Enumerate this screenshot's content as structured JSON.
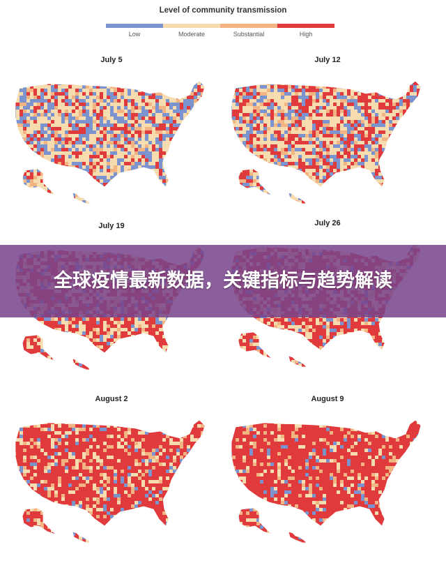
{
  "legend": {
    "title": "Level of community transmission",
    "levels": [
      {
        "label": "Low",
        "color": "#7b93cf"
      },
      {
        "label": "Moderate",
        "color": "#f6dcae"
      },
      {
        "label": "Substantial",
        "color": "#f2b483"
      },
      {
        "label": "High",
        "color": "#e03a3c"
      }
    ]
  },
  "maps": [
    {
      "date": "July 5",
      "mix": [
        0.28,
        0.4,
        0.1,
        0.22
      ]
    },
    {
      "date": "July 12",
      "mix": [
        0.22,
        0.36,
        0.1,
        0.32
      ]
    },
    {
      "date": "July 19",
      "mix": [
        0.12,
        0.28,
        0.12,
        0.48
      ]
    },
    {
      "date": "July 26",
      "mix": [
        0.08,
        0.24,
        0.12,
        0.56
      ]
    },
    {
      "date": "August 2",
      "mix": [
        0.08,
        0.16,
        0.12,
        0.64
      ]
    },
    {
      "date": "August 9",
      "mix": [
        0.06,
        0.1,
        0.08,
        0.76
      ]
    }
  ],
  "banner": {
    "text": "全球疫情最新数据，关键指标与趋势解读"
  }
}
